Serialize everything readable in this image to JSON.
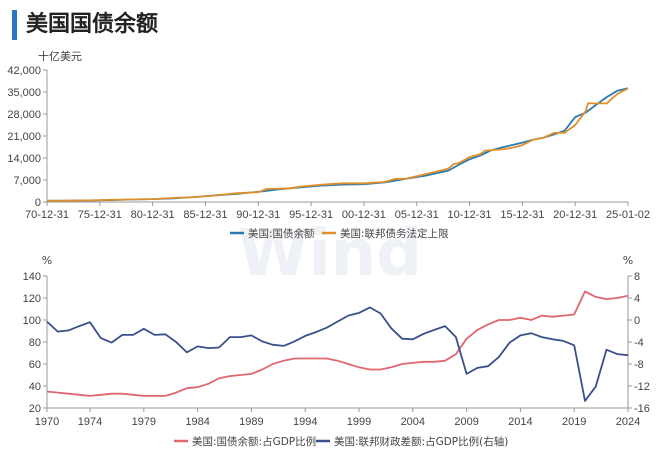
{
  "header": {
    "title": "美国国债余额"
  },
  "watermark": "Wind",
  "chart_data": [
    {
      "type": "line",
      "unit": "十亿美元",
      "x_tick_labels": [
        "70-12-31",
        "75-12-31",
        "80-12-31",
        "85-12-31",
        "90-12-31",
        "95-12-31",
        "00-12-31",
        "05-12-31",
        "10-12-31",
        "15-12-31",
        "20-12-31",
        "25-01-02"
      ],
      "y_tick_labels": [
        "0",
        "7,000",
        "14,000",
        "21,000",
        "28,000",
        "35,000",
        "42,000"
      ],
      "ylim": [
        0,
        42000
      ],
      "xlim": [
        1970.0,
        2025.0
      ],
      "grid": false,
      "legend_position": "bottom",
      "series": [
        {
          "name": "美国:国债余额",
          "color": "#2a7ab0",
          "points": [
            [
              1970,
              380
            ],
            [
              1972,
              430
            ],
            [
              1974,
              480
            ],
            [
              1976,
              620
            ],
            [
              1978,
              780
            ],
            [
              1980,
              910
            ],
            [
              1982,
              1150
            ],
            [
              1984,
              1580
            ],
            [
              1986,
              2130
            ],
            [
              1988,
              2600
            ],
            [
              1990,
              3230
            ],
            [
              1992,
              4060
            ],
            [
              1994,
              4690
            ],
            [
              1996,
              5220
            ],
            [
              1998,
              5530
            ],
            [
              2000,
              5670
            ],
            [
              2002,
              6230
            ],
            [
              2004,
              7380
            ],
            [
              2006,
              8500
            ],
            [
              2008,
              10000
            ],
            [
              2009,
              11900
            ],
            [
              2010,
              13600
            ],
            [
              2011,
              14800
            ],
            [
              2012,
              16400
            ],
            [
              2013,
              17300
            ],
            [
              2014,
              18100
            ],
            [
              2015,
              18900
            ],
            [
              2016,
              19800
            ],
            [
              2017,
              20500
            ],
            [
              2018,
              21500
            ],
            [
              2019,
              22700
            ],
            [
              2020,
              27000
            ],
            [
              2021,
              28400
            ],
            [
              2022,
              31000
            ],
            [
              2023,
              33400
            ],
            [
              2024,
              35400
            ],
            [
              2025,
              36200
            ]
          ]
        },
        {
          "name": "美国:联邦债务法定上限",
          "color": "#e0902a",
          "points": [
            [
              1970,
              395
            ],
            [
              1972,
              450
            ],
            [
              1974,
              495
            ],
            [
              1976,
              700
            ],
            [
              1978,
              830
            ],
            [
              1980,
              935
            ],
            [
              1982,
              1290
            ],
            [
              1984,
              1573
            ],
            [
              1986,
              2111
            ],
            [
              1988,
              2800
            ],
            [
              1990,
              3123
            ],
            [
              1990.8,
              4145
            ],
            [
              1993,
              4370
            ],
            [
              1994,
              4900
            ],
            [
              1996,
              5500
            ],
            [
              1998,
              5950
            ],
            [
              2000,
              5950
            ],
            [
              2002,
              6400
            ],
            [
              2003,
              7384
            ],
            [
              2004,
              7384
            ],
            [
              2005,
              8184
            ],
            [
              2006,
              8965
            ],
            [
              2007,
              9815
            ],
            [
              2008,
              10615
            ],
            [
              2008.5,
              12104
            ],
            [
              2009,
              12394
            ],
            [
              2010,
              14294
            ],
            [
              2011,
              15194
            ],
            [
              2011.5,
              16394
            ],
            [
              2013,
              16699
            ],
            [
              2014,
              17212
            ],
            [
              2015,
              18113
            ],
            [
              2016,
              19800
            ],
            [
              2017,
              20456
            ],
            [
              2018,
              21988
            ],
            [
              2019,
              22030
            ],
            [
              2020,
              24500
            ],
            [
              2021,
              28900
            ],
            [
              2021.2,
              31381
            ],
            [
              2023,
              31400
            ],
            [
              2023.5,
              33000
            ],
            [
              2024,
              34400
            ],
            [
              2025,
              36100
            ]
          ]
        }
      ]
    },
    {
      "type": "line",
      "left_unit": "%",
      "right_unit": "%",
      "x_tick_labels": [
        "1970",
        "1974",
        "1979",
        "1984",
        "1989",
        "1994",
        "1999",
        "2004",
        "2009",
        "2014",
        "2019",
        "2024"
      ],
      "x_tick_values": [
        1970,
        1974,
        1979,
        1984,
        1989,
        1994,
        1999,
        2004,
        2009,
        2014,
        2019,
        2024
      ],
      "xlim": [
        1970,
        2024
      ],
      "y_left_tick_labels": [
        "20",
        "40",
        "60",
        "80",
        "100",
        "120",
        "140"
      ],
      "y_left_range": [
        20,
        140
      ],
      "y_right_tick_labels": [
        "-16",
        "-12",
        "-8",
        "-4",
        "0",
        "4",
        "8"
      ],
      "y_right_range": [
        -16,
        8
      ],
      "grid": false,
      "legend_position": "bottom",
      "series": [
        {
          "name": "美国:国债余额:占GDP比例",
          "axis": "left",
          "color": "#e06670",
          "x": [
            1970,
            1971,
            1972,
            1973,
            1974,
            1975,
            1976,
            1977,
            1978,
            1979,
            1980,
            1981,
            1982,
            1983,
            1984,
            1985,
            1986,
            1987,
            1988,
            1989,
            1990,
            1991,
            1992,
            1993,
            1994,
            1995,
            1996,
            1997,
            1998,
            1999,
            2000,
            2001,
            2002,
            2003,
            2004,
            2005,
            2006,
            2007,
            2008,
            2009,
            2010,
            2011,
            2012,
            2013,
            2014,
            2015,
            2016,
            2017,
            2018,
            2019,
            2020,
            2021,
            2022,
            2023,
            2024
          ],
          "values": [
            35,
            34,
            33,
            32,
            31,
            32,
            33,
            33,
            32,
            31,
            31,
            31,
            34,
            38,
            39,
            42,
            47,
            49,
            50,
            51,
            55,
            60,
            63,
            65,
            65,
            65,
            65,
            63,
            60,
            57,
            55,
            55,
            57,
            60,
            61,
            62,
            62,
            63,
            69,
            83,
            91,
            96,
            100,
            100,
            102,
            100,
            104,
            103,
            104,
            105,
            126,
            121,
            119,
            120,
            122
          ]
        },
        {
          "name": "美国:联邦财政差额:占GDP比例(右轴)",
          "axis": "right",
          "color": "#3a4f8c",
          "x": [
            1970,
            1971,
            1972,
            1973,
            1974,
            1975,
            1976,
            1977,
            1978,
            1979,
            1980,
            1981,
            1982,
            1983,
            1984,
            1985,
            1986,
            1987,
            1988,
            1989,
            1990,
            1991,
            1992,
            1993,
            1994,
            1995,
            1996,
            1997,
            1998,
            1999,
            2000,
            2001,
            2002,
            2003,
            2004,
            2005,
            2006,
            2007,
            2008,
            2009,
            2010,
            2011,
            2012,
            2013,
            2014,
            2015,
            2016,
            2017,
            2018,
            2019,
            2020,
            2021,
            2022,
            2023,
            2024
          ],
          "values": [
            -0.3,
            -2.1,
            -1.9,
            -1.1,
            -0.4,
            -3.3,
            -4.1,
            -2.7,
            -2.7,
            -1.6,
            -2.7,
            -2.6,
            -4.0,
            -5.9,
            -4.8,
            -5.1,
            -5.0,
            -3.1,
            -3.1,
            -2.8,
            -3.9,
            -4.5,
            -4.7,
            -3.9,
            -2.9,
            -2.2,
            -1.4,
            -0.3,
            0.8,
            1.3,
            2.3,
            1.2,
            -1.5,
            -3.4,
            -3.5,
            -2.5,
            -1.8,
            -1.1,
            -3.1,
            -9.8,
            -8.7,
            -8.4,
            -6.7,
            -4.1,
            -2.8,
            -2.4,
            -3.1,
            -3.5,
            -3.8,
            -4.6,
            -14.7,
            -12.1,
            -5.4,
            -6.2,
            -6.4
          ]
        }
      ]
    }
  ]
}
